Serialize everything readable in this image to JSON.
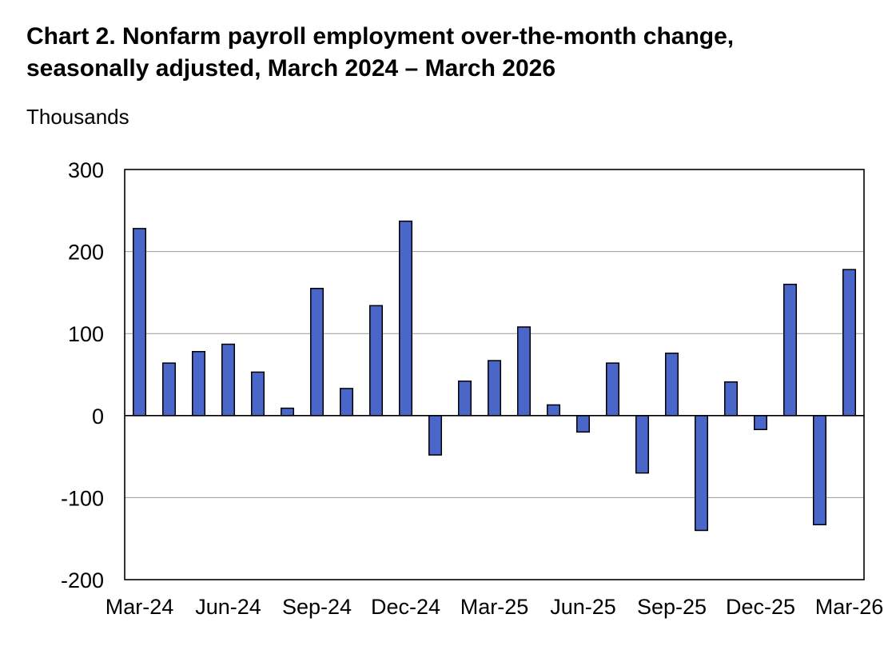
{
  "chart_data": {
    "type": "bar",
    "title_line1": "Chart 2. Nonfarm payroll employment over-the-month change,",
    "title_line2": "seasonally adjusted, March 2024 – March 2026",
    "ylabel": "Thousands",
    "xlabel": "",
    "ylim": [
      -200,
      300
    ],
    "yticks": [
      300,
      200,
      100,
      0,
      -100,
      -200
    ],
    "ytick_labels": [
      "300",
      "200",
      "100",
      "0",
      "-100",
      "-200"
    ],
    "categories": [
      "Mar-24",
      "Apr-24",
      "May-24",
      "Jun-24",
      "Jul-24",
      "Aug-24",
      "Sep-24",
      "Oct-24",
      "Nov-24",
      "Dec-24",
      "Jan-25",
      "Feb-25",
      "Mar-25",
      "Apr-25",
      "May-25",
      "Jun-25",
      "Jul-25",
      "Aug-25",
      "Sep-25",
      "Oct-25",
      "Nov-25",
      "Dec-25",
      "Jan-26",
      "Feb-26",
      "Mar-26"
    ],
    "xtick_labels": [
      "Mar-24",
      "Jun-24",
      "Sep-24",
      "Dec-24",
      "Mar-25",
      "Jun-25",
      "Sep-25",
      "Dec-25",
      "Mar-26"
    ],
    "values": [
      228,
      64,
      78,
      87,
      53,
      9,
      155,
      33,
      134,
      237,
      -48,
      42,
      67,
      108,
      13,
      -20,
      64,
      -70,
      76,
      -140,
      41,
      -17,
      160,
      -133,
      178
    ],
    "bar_color": "#4a66c8",
    "grid": true,
    "legend": "none"
  }
}
